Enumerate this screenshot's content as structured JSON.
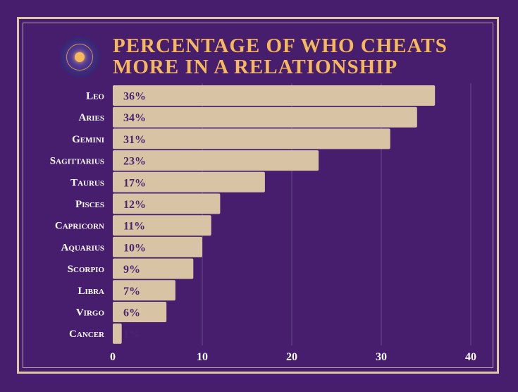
{
  "chart_data": {
    "type": "bar",
    "orientation": "horizontal",
    "title": "Percentage of who cheats more in a relationship",
    "title_lines": [
      "Percentage of who cheats",
      "more in a relationship"
    ],
    "categories": [
      "Leo",
      "Aries",
      "Gemini",
      "Sagittarius",
      "Taurus",
      "Pisces",
      "Capricorn",
      "Aquarius",
      "Scorpio",
      "Libra",
      "Virgo",
      "Cancer"
    ],
    "values": [
      36,
      34,
      31,
      23,
      17,
      12,
      11,
      10,
      9,
      7,
      6,
      1
    ],
    "data_labels": [
      "36%",
      "34%",
      "31%",
      "23%",
      "17%",
      "12%",
      "11%",
      "10%",
      "9%",
      "7%",
      "6%",
      "1%"
    ],
    "xlim": [
      0,
      42
    ],
    "xticks": [
      0,
      10,
      20,
      30,
      40
    ],
    "grid": true,
    "legend": "none",
    "xlabel": "",
    "ylabel": ""
  },
  "colors": {
    "background": "#471d6e",
    "bar": "#d9c3a5",
    "title": "#f5b85a",
    "frame": "#dcc5a8",
    "value_text": "#4a2570"
  },
  "logo": {
    "icon": "zodiac-wheel-icon"
  }
}
